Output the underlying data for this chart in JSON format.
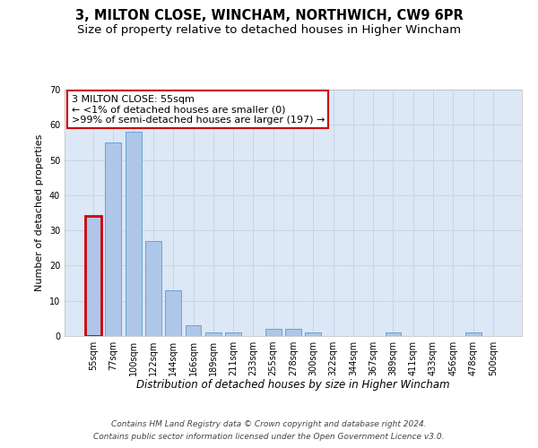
{
  "title_line1": "3, MILTON CLOSE, WINCHAM, NORTHWICH, CW9 6PR",
  "title_line2": "Size of property relative to detached houses in Higher Wincham",
  "xlabel": "Distribution of detached houses by size in Higher Wincham",
  "ylabel": "Number of detached properties",
  "categories": [
    "55sqm",
    "77sqm",
    "100sqm",
    "122sqm",
    "144sqm",
    "166sqm",
    "189sqm",
    "211sqm",
    "233sqm",
    "255sqm",
    "278sqm",
    "300sqm",
    "322sqm",
    "344sqm",
    "367sqm",
    "389sqm",
    "411sqm",
    "433sqm",
    "456sqm",
    "478sqm",
    "500sqm"
  ],
  "values": [
    34,
    55,
    58,
    27,
    13,
    3,
    1,
    1,
    0,
    2,
    2,
    1,
    0,
    0,
    0,
    1,
    0,
    0,
    0,
    1,
    0
  ],
  "bar_color": "#aec6e8",
  "bar_edge_color": "#5b9bd5",
  "highlight_index": 0,
  "highlight_edge_color": "#cc0000",
  "annotation_box_text": "3 MILTON CLOSE: 55sqm\n← <1% of detached houses are smaller (0)\n>99% of semi-detached houses are larger (197) →",
  "annotation_box_color": "white",
  "annotation_box_edge_color": "#cc0000",
  "ylim": [
    0,
    70
  ],
  "yticks": [
    0,
    10,
    20,
    30,
    40,
    50,
    60,
    70
  ],
  "grid_color": "#c8d4e8",
  "background_color": "#dce8f5",
  "footer_line1": "Contains HM Land Registry data © Crown copyright and database right 2024.",
  "footer_line2": "Contains public sector information licensed under the Open Government Licence v3.0.",
  "title_fontsize": 10.5,
  "subtitle_fontsize": 9.5,
  "xlabel_fontsize": 8.5,
  "ylabel_fontsize": 8,
  "tick_fontsize": 7,
  "annotation_fontsize": 8,
  "footer_fontsize": 6.5
}
